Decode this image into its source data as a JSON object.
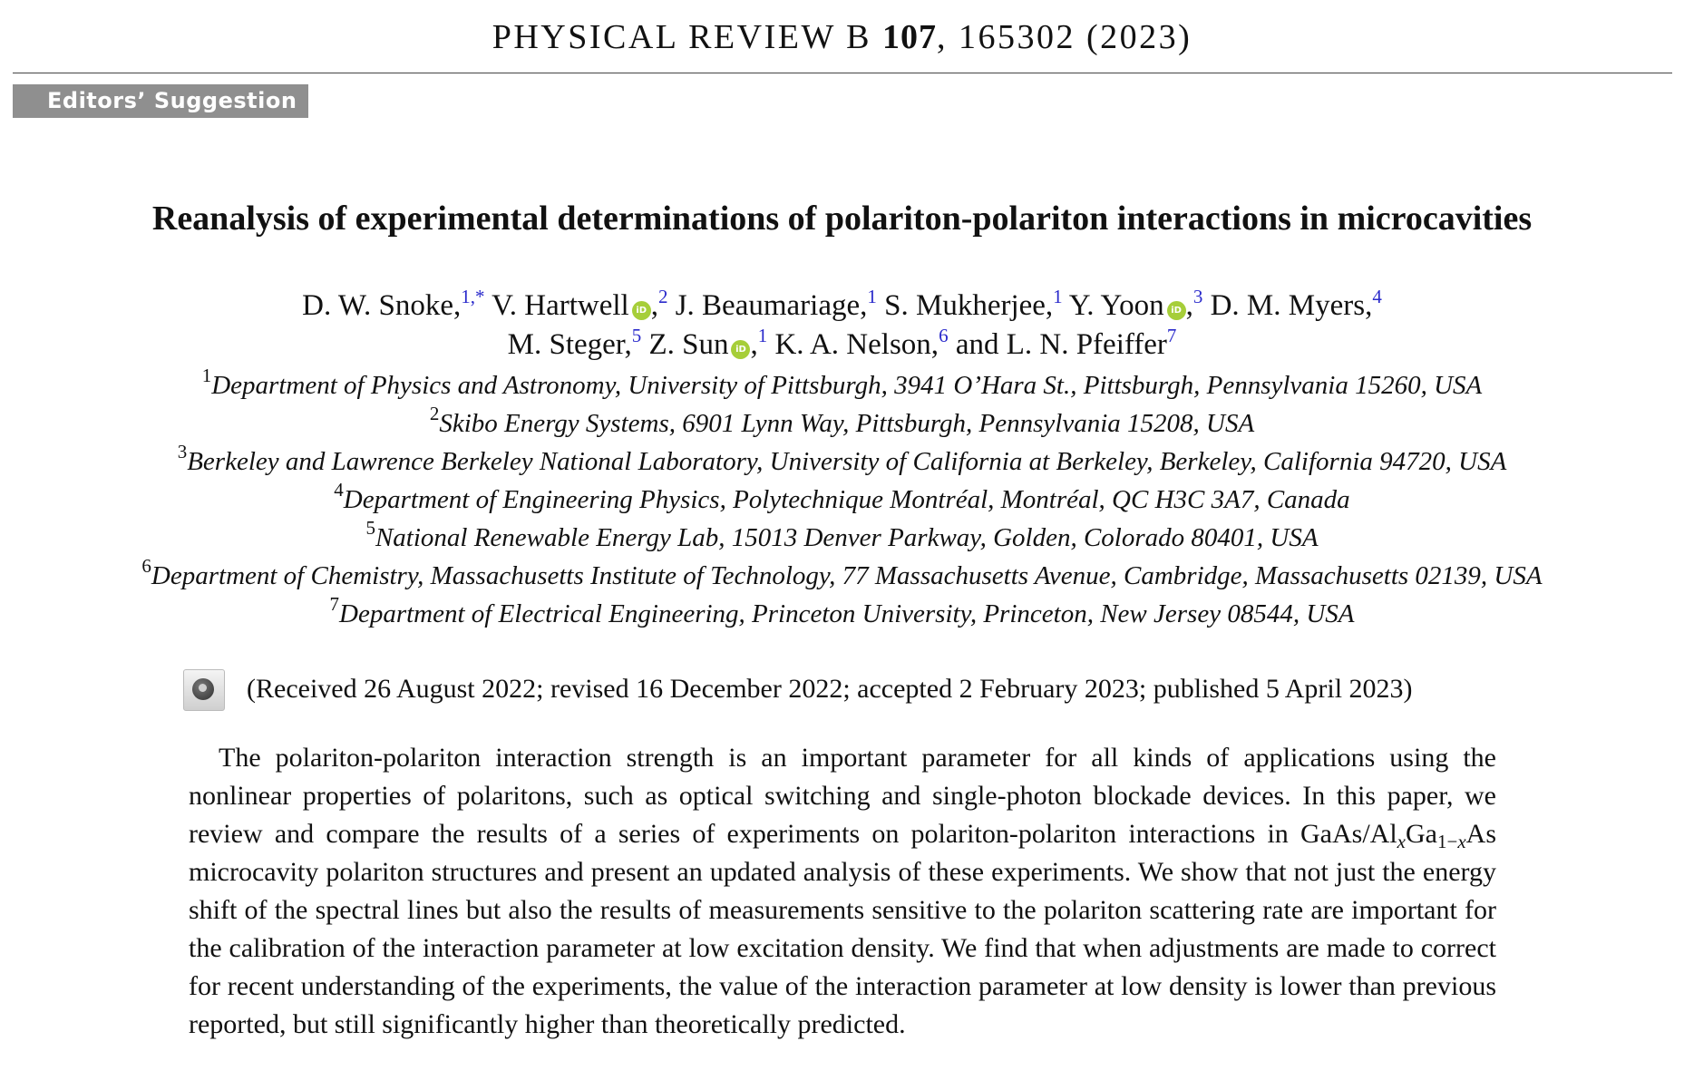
{
  "journal": {
    "name": "PHYSICAL REVIEW B",
    "volume": "107",
    "citation": ", 165302 (2023)"
  },
  "badge": "Editors’ Suggestion",
  "title": "Reanalysis of experimental determinations of polariton-polariton interactions in microcavities",
  "authors": [
    {
      "name": "D. W. Snoke,",
      "sup": "1,*"
    },
    {
      "name": "V. Hartwell",
      "orcid": "iD",
      "sep": ",",
      "sup": "2"
    },
    {
      "name": "J. Beaumariage,",
      "sup": "1"
    },
    {
      "name": "S. Mukherjee,",
      "sup": "1"
    },
    {
      "name": "Y. Yoon",
      "orcid": "iD",
      "sep": ",",
      "sup": "3"
    },
    {
      "name": "D. M. Myers,",
      "sup": "4"
    },
    {
      "name": "M. Steger,",
      "sup": "5"
    },
    {
      "name": "Z. Sun",
      "orcid": "iD",
      "sep": ",",
      "sup": "1"
    },
    {
      "name": "K. A. Nelson,",
      "sup": "6"
    },
    {
      "name": "and L. N. Pfeiffer",
      "sup": "7"
    }
  ],
  "affiliations": [
    {
      "num": "1",
      "text": "Department of Physics and Astronomy, University of Pittsburgh, 3941 O’Hara St., Pittsburgh, Pennsylvania 15260, USA"
    },
    {
      "num": "2",
      "text": "Skibo Energy Systems, 6901 Lynn Way, Pittsburgh, Pennsylvania 15208, USA"
    },
    {
      "num": "3",
      "text": "Berkeley and Lawrence Berkeley National Laboratory, University of California at Berkeley, Berkeley, California 94720, USA"
    },
    {
      "num": "4",
      "text": "Department of Engineering Physics, Polytechnique Montréal, Montréal, QC H3C 3A7, Canada"
    },
    {
      "num": "5",
      "text": "National Renewable Energy Lab, 15013 Denver Parkway, Golden, Colorado 80401, USA"
    },
    {
      "num": "6",
      "text": "Department of Chemistry, Massachusetts Institute of Technology, 77 Massachusetts Avenue, Cambridge, Massachusetts 02139, USA"
    },
    {
      "num": "7",
      "text": "Department of Electrical Engineering, Princeton University, Princeton, New Jersey 08544, USA"
    }
  ],
  "dates": "(Received 26 August 2022; revised 16 December 2022; accepted 2 February 2023; published 5 April 2023)",
  "abstract": {
    "part1": "The polariton-polariton interaction strength is an important parameter for all kinds of applications using the nonlinear properties of polaritons, such as optical switching and single-photon blockade devices. In this paper, we review and compare the results of a series of experiments on polariton-polariton interactions in GaAs/Al",
    "sub1": "x",
    "mid": "Ga",
    "sub2": "1−",
    "sub2var": "x",
    "part2": "As microcavity polariton structures and present an updated analysis of these experiments. We show that not just the energy shift of the spectral lines but also the results of measurements sensitive to the polariton scattering rate are important for the calibration of the interaction parameter at low excitation density. We find that when adjustments are made to correct for recent understanding of the experiments, the value of the interaction parameter at low density is lower than previous reported, but still significantly higher than theoretically predicted."
  }
}
